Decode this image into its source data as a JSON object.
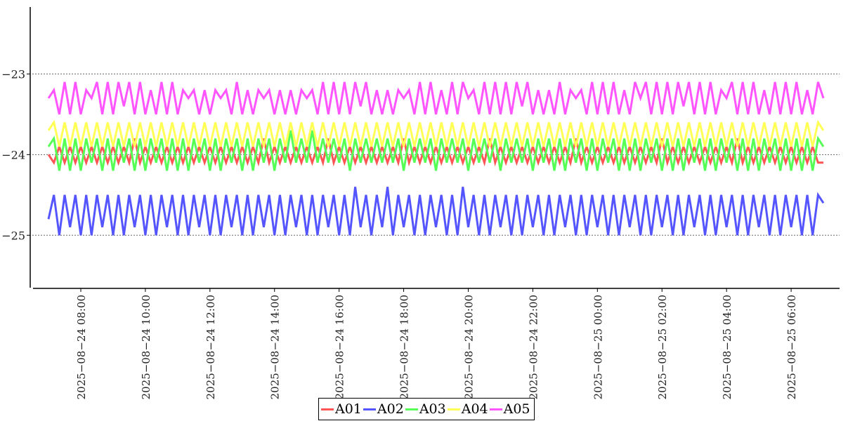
{
  "chart_data": {
    "type": "line",
    "title": "",
    "xlabel": "",
    "ylabel": "",
    "x_start": "2025-08-24 07:00",
    "x_interval_minutes": 10,
    "xlim": [
      "2025-08-24 06:26",
      "2025-08-25 07:30"
    ],
    "ylim": [
      -25.65,
      -22.17
    ],
    "yticks": [
      -23,
      -24,
      -25
    ],
    "ytick_labels": [
      "−23",
      "−24",
      "−25"
    ],
    "xticks": [
      "2025-08-24 08:00",
      "2025-08-24 10:00",
      "2025-08-24 12:00",
      "2025-08-24 14:00",
      "2025-08-24 16:00",
      "2025-08-24 18:00",
      "2025-08-24 20:00",
      "2025-08-24 22:00",
      "2025-08-25 00:00",
      "2025-08-25 02:00",
      "2025-08-25 04:00",
      "2025-08-25 06:00"
    ],
    "grid": "horizontal dotted",
    "legend_position": "bottom-center",
    "series": [
      {
        "name": "A01",
        "color": "#ff5555",
        "values": [
          -24.0,
          -24.1,
          -23.9,
          -24.1,
          -23.9,
          -24.1,
          -23.9,
          -24.1,
          -23.9,
          -24.1,
          -23.9,
          -24.1,
          -23.9,
          -24.1,
          -23.9,
          -24.1,
          -23.8,
          -24.1,
          -23.9,
          -24.1,
          -23.9,
          -24.1,
          -23.9,
          -24.1,
          -23.9,
          -24.1,
          -23.9,
          -24.1,
          -23.9,
          -24.1,
          -23.9,
          -24.1,
          -23.9,
          -24.1,
          -23.9,
          -24.1,
          -23.9,
          -24.1,
          -23.9,
          -24.1,
          -23.8,
          -24.1,
          -23.9,
          -24.1,
          -23.9,
          -24.1,
          -23.9,
          -24.1,
          -23.9,
          -24.1,
          -23.9,
          -24.1,
          -23.8,
          -24.1,
          -23.9,
          -24.1,
          -23.9,
          -24.1,
          -23.9,
          -24.1,
          -23.9,
          -24.1,
          -23.9,
          -24.1,
          -23.9,
          -24.1,
          -23.8,
          -24.1,
          -23.9,
          -24.1,
          -23.9,
          -24.1,
          -23.9,
          -24.1,
          -23.9,
          -24.1,
          -23.9,
          -24.1,
          -23.9,
          -24.1,
          -23.9,
          -24.1,
          -23.8,
          -24.1,
          -23.9,
          -24.1,
          -23.9,
          -24.1,
          -23.9,
          -24.1,
          -23.9,
          -24.1,
          -23.9,
          -24.1,
          -23.9,
          -24.1,
          -23.9,
          -24.1,
          -23.8,
          -24.1,
          -23.9,
          -24.1,
          -23.9,
          -24.1,
          -23.9,
          -24.1,
          -23.9,
          -24.1,
          -23.9,
          -24.1,
          -23.9,
          -24.1,
          -23.9,
          -24.1,
          -23.8,
          -24.1,
          -23.9,
          -24.1,
          -23.9,
          -24.1,
          -23.9,
          -24.1,
          -23.9,
          -24.1,
          -23.9,
          -24.1,
          -23.9,
          -24.1,
          -23.8,
          -24.1,
          -23.9,
          -24.1,
          -23.9,
          -24.1,
          -23.9,
          -24.1,
          -23.9,
          -24.1,
          -23.9,
          -24.1,
          -23.9,
          -24.1,
          -23.9,
          -24.1,
          -24.1
        ]
      },
      {
        "name": "A02",
        "color": "#5555ff",
        "values": [
          -24.8,
          -24.5,
          -25.0,
          -24.5,
          -24.9,
          -24.5,
          -25.0,
          -24.5,
          -25.0,
          -24.5,
          -24.9,
          -24.5,
          -25.0,
          -24.5,
          -25.0,
          -24.5,
          -24.9,
          -24.5,
          -25.0,
          -24.5,
          -25.0,
          -24.5,
          -24.9,
          -24.5,
          -25.0,
          -24.5,
          -25.0,
          -24.5,
          -24.9,
          -24.5,
          -25.0,
          -24.5,
          -25.0,
          -24.5,
          -24.9,
          -24.5,
          -25.0,
          -24.5,
          -25.0,
          -24.5,
          -24.9,
          -24.5,
          -25.0,
          -24.5,
          -25.0,
          -24.5,
          -24.9,
          -24.5,
          -25.0,
          -24.5,
          -25.0,
          -24.5,
          -24.9,
          -24.5,
          -25.0,
          -24.5,
          -25.0,
          -24.4,
          -24.9,
          -24.5,
          -25.0,
          -24.5,
          -24.9,
          -24.4,
          -25.0,
          -24.5,
          -24.9,
          -24.5,
          -25.0,
          -24.5,
          -25.0,
          -24.5,
          -24.9,
          -24.5,
          -25.0,
          -24.5,
          -25.0,
          -24.4,
          -24.9,
          -24.5,
          -25.0,
          -24.5,
          -25.0,
          -24.5,
          -24.9,
          -24.5,
          -25.0,
          -24.5,
          -25.0,
          -24.5,
          -24.9,
          -24.5,
          -25.0,
          -24.5,
          -25.0,
          -24.5,
          -24.9,
          -24.5,
          -25.0,
          -24.5,
          -25.0,
          -24.5,
          -24.9,
          -24.5,
          -25.0,
          -24.5,
          -25.0,
          -24.5,
          -24.9,
          -24.5,
          -25.0,
          -24.5,
          -25.0,
          -24.5,
          -24.9,
          -24.5,
          -25.0,
          -24.5,
          -25.0,
          -24.5,
          -24.9,
          -24.5,
          -25.0,
          -24.5,
          -25.0,
          -24.5,
          -24.9,
          -24.5,
          -25.0,
          -24.5,
          -25.0,
          -24.5,
          -24.9,
          -24.5,
          -25.0,
          -24.5,
          -25.0,
          -24.5,
          -24.9,
          -24.5,
          -25.0,
          -24.5,
          -25.0,
          -24.5,
          -24.6
        ]
      },
      {
        "name": "A03",
        "color": "#55ff55",
        "values": [
          -23.9,
          -23.8,
          -24.2,
          -23.8,
          -24.2,
          -23.8,
          -24.2,
          -23.8,
          -24.1,
          -23.8,
          -24.2,
          -23.8,
          -24.2,
          -23.8,
          -24.1,
          -23.8,
          -24.2,
          -23.8,
          -24.2,
          -23.8,
          -24.1,
          -23.8,
          -24.2,
          -23.8,
          -24.2,
          -23.8,
          -24.2,
          -23.8,
          -24.1,
          -23.8,
          -24.2,
          -23.8,
          -24.2,
          -23.8,
          -24.1,
          -23.8,
          -24.2,
          -23.8,
          -24.2,
          -23.8,
          -24.1,
          -23.8,
          -24.2,
          -23.8,
          -24.1,
          -23.7,
          -24.1,
          -23.8,
          -24.1,
          -23.7,
          -24.1,
          -23.8,
          -24.1,
          -23.8,
          -24.1,
          -23.8,
          -24.2,
          -23.8,
          -24.1,
          -23.8,
          -24.1,
          -23.8,
          -24.1,
          -23.8,
          -24.1,
          -23.8,
          -24.2,
          -23.8,
          -24.1,
          -23.8,
          -24.1,
          -23.8,
          -24.2,
          -23.8,
          -24.1,
          -23.8,
          -24.1,
          -23.8,
          -24.2,
          -23.8,
          -24.1,
          -23.8,
          -24.1,
          -23.8,
          -24.2,
          -23.8,
          -24.1,
          -23.8,
          -24.1,
          -23.8,
          -24.2,
          -23.8,
          -24.1,
          -23.8,
          -24.2,
          -23.8,
          -24.2,
          -23.8,
          -24.1,
          -23.8,
          -24.2,
          -23.8,
          -24.2,
          -23.8,
          -24.1,
          -23.8,
          -24.2,
          -23.8,
          -24.2,
          -23.8,
          -24.2,
          -23.8,
          -24.1,
          -23.8,
          -24.2,
          -23.8,
          -24.2,
          -23.8,
          -24.2,
          -23.8,
          -24.1,
          -23.8,
          -24.2,
          -23.8,
          -24.2,
          -23.8,
          -24.1,
          -23.8,
          -24.2,
          -23.8,
          -24.2,
          -23.8,
          -24.2,
          -23.8,
          -24.1,
          -23.8,
          -24.2,
          -23.8,
          -24.2,
          -23.8,
          -24.2,
          -23.8,
          -24.2,
          -23.8,
          -23.9
        ]
      },
      {
        "name": "A04",
        "color": "#ffff55",
        "values": [
          -23.7,
          -23.6,
          -23.9,
          -23.6,
          -23.9,
          -23.6,
          -23.9,
          -23.6,
          -23.9,
          -23.6,
          -23.9,
          -23.6,
          -23.9,
          -23.6,
          -23.9,
          -23.6,
          -23.9,
          -23.6,
          -23.9,
          -23.6,
          -23.9,
          -23.6,
          -23.9,
          -23.6,
          -23.9,
          -23.6,
          -23.9,
          -23.6,
          -23.9,
          -23.6,
          -23.9,
          -23.6,
          -23.9,
          -23.6,
          -23.9,
          -23.6,
          -23.9,
          -23.6,
          -23.9,
          -23.6,
          -23.9,
          -23.6,
          -23.9,
          -23.6,
          -23.9,
          -23.6,
          -23.9,
          -23.6,
          -23.9,
          -23.6,
          -23.9,
          -23.6,
          -23.9,
          -23.6,
          -23.9,
          -23.6,
          -23.9,
          -23.6,
          -23.9,
          -23.6,
          -23.9,
          -23.6,
          -23.9,
          -23.6,
          -23.9,
          -23.6,
          -23.9,
          -23.6,
          -23.9,
          -23.6,
          -23.9,
          -23.6,
          -23.9,
          -23.6,
          -23.9,
          -23.6,
          -23.9,
          -23.6,
          -23.9,
          -23.6,
          -23.9,
          -23.6,
          -23.9,
          -23.6,
          -23.9,
          -23.6,
          -23.9,
          -23.6,
          -23.9,
          -23.6,
          -23.9,
          -23.6,
          -23.9,
          -23.6,
          -23.9,
          -23.6,
          -23.9,
          -23.6,
          -23.9,
          -23.6,
          -23.9,
          -23.6,
          -23.9,
          -23.6,
          -23.9,
          -23.6,
          -23.9,
          -23.6,
          -23.9,
          -23.6,
          -23.9,
          -23.6,
          -23.9,
          -23.6,
          -23.9,
          -23.6,
          -23.9,
          -23.6,
          -23.9,
          -23.6,
          -23.9,
          -23.6,
          -23.9,
          -23.6,
          -23.9,
          -23.6,
          -23.9,
          -23.6,
          -23.9,
          -23.6,
          -23.9,
          -23.6,
          -23.9,
          -23.6,
          -23.9,
          -23.6,
          -23.9,
          -23.6,
          -23.9,
          -23.6,
          -23.9,
          -23.6,
          -23.9,
          -23.6,
          -23.7
        ]
      },
      {
        "name": "A05",
        "color": "#ff55ff",
        "values": [
          -23.3,
          -23.2,
          -23.5,
          -23.1,
          -23.5,
          -23.1,
          -23.5,
          -23.2,
          -23.3,
          -23.1,
          -23.5,
          -23.1,
          -23.5,
          -23.1,
          -23.4,
          -23.1,
          -23.5,
          -23.1,
          -23.5,
          -23.2,
          -23.5,
          -23.1,
          -23.5,
          -23.1,
          -23.5,
          -23.2,
          -23.3,
          -23.2,
          -23.5,
          -23.2,
          -23.5,
          -23.2,
          -23.3,
          -23.2,
          -23.5,
          -23.1,
          -23.5,
          -23.2,
          -23.5,
          -23.2,
          -23.3,
          -23.2,
          -23.5,
          -23.2,
          -23.5,
          -23.2,
          -23.5,
          -23.2,
          -23.3,
          -23.2,
          -23.5,
          -23.1,
          -23.5,
          -23.1,
          -23.5,
          -23.1,
          -23.5,
          -23.1,
          -23.4,
          -23.1,
          -23.5,
          -23.2,
          -23.5,
          -23.2,
          -23.5,
          -23.2,
          -23.3,
          -23.2,
          -23.5,
          -23.1,
          -23.5,
          -23.1,
          -23.5,
          -23.2,
          -23.5,
          -23.1,
          -23.5,
          -23.1,
          -23.3,
          -23.2,
          -23.5,
          -23.1,
          -23.5,
          -23.1,
          -23.5,
          -23.1,
          -23.5,
          -23.1,
          -23.4,
          -23.1,
          -23.5,
          -23.2,
          -23.5,
          -23.2,
          -23.5,
          -23.1,
          -23.5,
          -23.2,
          -23.3,
          -23.2,
          -23.5,
          -23.1,
          -23.5,
          -23.1,
          -23.5,
          -23.1,
          -23.5,
          -23.2,
          -23.5,
          -23.1,
          -23.3,
          -23.1,
          -23.5,
          -23.1,
          -23.5,
          -23.1,
          -23.5,
          -23.1,
          -23.4,
          -23.1,
          -23.5,
          -23.1,
          -23.5,
          -23.1,
          -23.5,
          -23.2,
          -23.3,
          -23.1,
          -23.5,
          -23.1,
          -23.5,
          -23.1,
          -23.5,
          -23.2,
          -23.5,
          -23.1,
          -23.5,
          -23.1,
          -23.5,
          -23.1,
          -23.5,
          -23.2,
          -23.5,
          -23.1,
          -23.3
        ]
      }
    ]
  }
}
